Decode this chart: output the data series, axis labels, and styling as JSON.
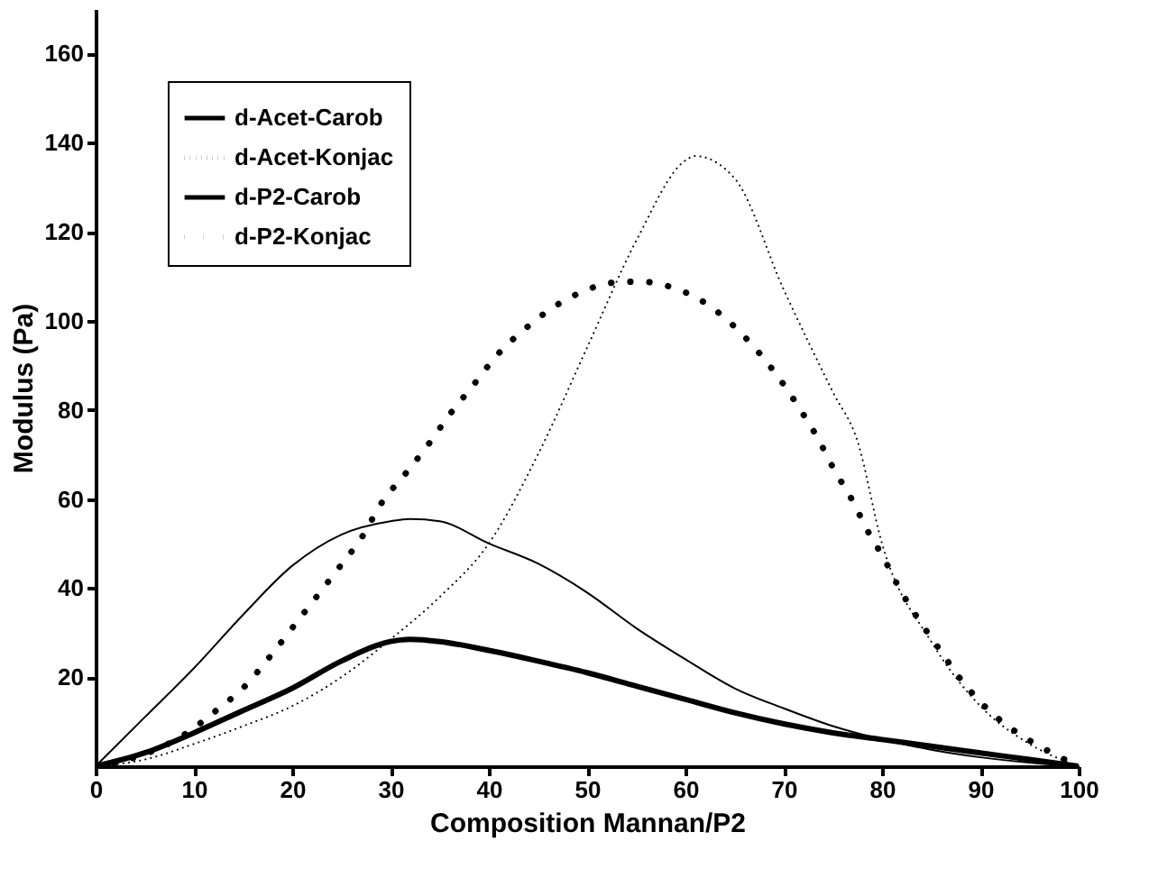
{
  "chart_data": {
    "type": "line",
    "xlabel": "Composition Mannan/P2",
    "ylabel": "Modulus (Pa)",
    "xlim": [
      0,
      100
    ],
    "ylim": [
      0,
      170
    ],
    "xticks": [
      0,
      10,
      20,
      30,
      40,
      50,
      60,
      70,
      80,
      90,
      100
    ],
    "yticks": [
      20,
      40,
      60,
      80,
      100,
      120,
      140,
      160
    ],
    "grid": false,
    "legend": "top left",
    "series": [
      {
        "name": "d-Acet-Carob",
        "color": "#000000",
        "line_style": "solid",
        "x": [
          0,
          5,
          10,
          15,
          20,
          25,
          30,
          32,
          35,
          40,
          45,
          50,
          55,
          60,
          65,
          70,
          75,
          80,
          85,
          90,
          95,
          100
        ],
        "values": [
          0,
          11,
          22,
          34,
          45,
          52,
          55,
          55.5,
          55,
          50,
          45.5,
          39,
          31,
          24,
          17.5,
          13,
          9,
          6,
          3.7,
          2,
          0.8,
          0
        ]
      },
      {
        "name": "d-Acet-Konjac",
        "color": "#000000",
        "line_style": "dotted",
        "x": [
          0,
          5,
          10,
          15,
          20,
          25,
          30,
          35,
          40,
          45,
          50,
          55,
          60,
          61,
          65,
          70,
          75,
          77.5,
          80,
          85,
          90,
          95,
          100
        ],
        "values": [
          0,
          1.5,
          5,
          9,
          13.5,
          20,
          28.5,
          38,
          50,
          70,
          94,
          118,
          136,
          137,
          132,
          107,
          84,
          73,
          50,
          28,
          13.5,
          5,
          0
        ]
      },
      {
        "name": "d-P2-Carob",
        "color": "#000000",
        "line_style": "solid",
        "x": [
          0,
          5,
          10,
          15,
          20,
          25,
          30,
          32,
          35,
          40,
          45,
          50,
          55,
          60,
          65,
          70,
          75,
          80,
          85,
          90,
          95,
          100
        ],
        "values": [
          0,
          3,
          7.5,
          12.5,
          17.5,
          23.6,
          28,
          28.5,
          28,
          26,
          23.6,
          21,
          18,
          15,
          12,
          9.5,
          7.5,
          6,
          4.5,
          3,
          1.5,
          0
        ]
      },
      {
        "name": "d-P2-Konjac",
        "color": "#000000",
        "line_style": "dotted",
        "x": [
          0,
          3.3,
          9.3,
          12.1,
          15.2,
          17.8,
          20.2,
          22.6,
          24.8,
          27.2,
          29,
          31.6,
          33.8,
          36,
          38.4,
          40.8,
          43.8,
          46.4,
          49.5,
          52.4,
          55.4,
          58.5,
          61.5,
          64.5,
          67.3,
          69.7,
          71.7,
          73.5,
          75.1,
          76.9,
          78.5,
          80.2,
          81.8,
          83.7,
          85.8,
          87.9,
          90.6,
          93.7,
          96.6,
          100
        ],
        "values": [
          0,
          1.5,
          7.5,
          12.2,
          18,
          24.8,
          31.6,
          38.4,
          44.7,
          51.8,
          58.8,
          65.9,
          72.1,
          78.9,
          85.5,
          92.2,
          98.4,
          102.8,
          106.5,
          108.5,
          108.8,
          107.6,
          104.7,
          99.7,
          93.3,
          86.6,
          80,
          73.5,
          66.7,
          60,
          53,
          46.6,
          39.8,
          33,
          26.4,
          19.8,
          13.1,
          7.6,
          3.8,
          0
        ]
      }
    ]
  }
}
